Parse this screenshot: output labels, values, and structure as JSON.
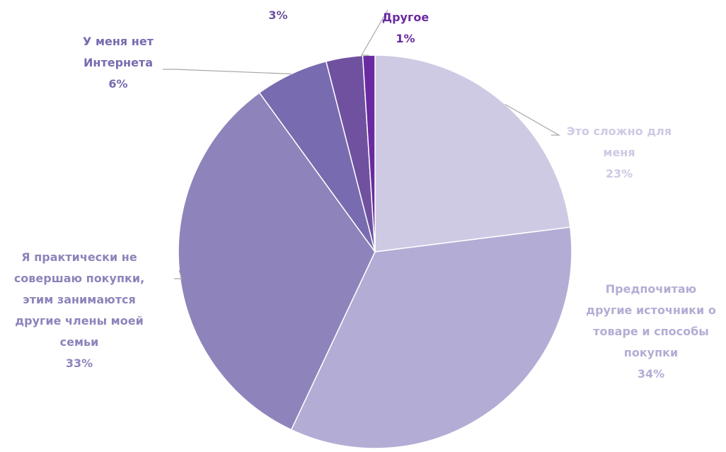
{
  "chart_data": {
    "type": "pie",
    "title": "",
    "start_angle_deg": 0,
    "direction": "clockwise",
    "slices": [
      {
        "label_lines": [
          "Это сложно для",
          "меня"
        ],
        "value": 23,
        "value_text": "23%",
        "color": "#CECAE4",
        "label_color": "#CECAE4"
      },
      {
        "label_lines": [
          "Предпочитаю",
          "другие источники о",
          "товаре и способы",
          "покупки"
        ],
        "value": 34,
        "value_text": "34%",
        "color": "#B3ADD5",
        "label_color": "#B3ADD5"
      },
      {
        "label_lines": [
          "Я практически не",
          "совершаю покупки,",
          "этим занимаются",
          "другие члены моей",
          "семьи"
        ],
        "value": 33,
        "value_text": "33%",
        "color": "#8E84BB",
        "label_color": "#8E84BB"
      },
      {
        "label_lines": [
          "У меня нет",
          "Интернета"
        ],
        "value": 6,
        "value_text": "6%",
        "color": "#786BAF",
        "label_color": "#786BAF"
      },
      {
        "label_lines": [],
        "value": 3,
        "value_text": "3%",
        "color": "#7051A0",
        "label_color": "#7051A0"
      },
      {
        "label_lines": [
          "Другое"
        ],
        "value": 1,
        "value_text": "1%",
        "color": "#6A2BA0",
        "label_color": "#6A2BA0"
      }
    ]
  }
}
